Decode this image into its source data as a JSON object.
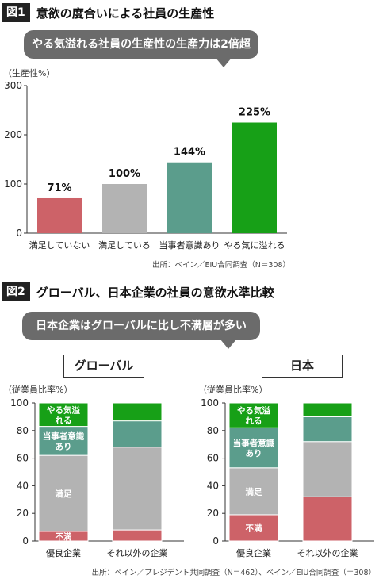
{
  "fig1": {
    "label": "図1",
    "title": "意欲の度合いによる社員の生産性",
    "callout": "やる気溢れる社員の生産性の生産力は2倍超",
    "unit": "（生産性%）",
    "source": "出所：ベイン／EIU合同調査（N＝308）"
  },
  "fig2": {
    "label": "図2",
    "title": "グローバル、日本企業の社員の意欲水準比較",
    "callout": "日本企業はグローバルに比し不満層が多い",
    "source": "出所：ベイン／プレジデント共同調査（N＝462）、ベイン／EIU合同調査（＝308）",
    "panels": [
      {
        "title": "グローバル",
        "unit": "（従業員比率%）"
      },
      {
        "title": "日本",
        "unit": "（従業員比率%）"
      }
    ]
  },
  "colors": {
    "red": "#cd6268",
    "gray": "#b3b3b3",
    "teal": "#5b9d8c",
    "green": "#17a017"
  },
  "chart_data": [
    {
      "type": "bar",
      "categories": [
        "満足していない",
        "満足している",
        "当事者意識あり",
        "やる気に溢れる"
      ],
      "values": [
        71,
        100,
        144,
        225
      ],
      "data_labels": [
        "71%",
        "100%",
        "144%",
        "225%"
      ],
      "colors": [
        "#cd6268",
        "#b3b3b3",
        "#5b9d8c",
        "#17a017"
      ],
      "title": "",
      "ylabel": "（生産性%）",
      "ylim": [
        0,
        300
      ],
      "yticks": [
        0,
        100,
        200,
        300
      ]
    },
    {
      "type": "stacked_bar",
      "panel": "グローバル",
      "categories": [
        "優良企業",
        "それ以外の企業"
      ],
      "ylabel": "（従業員比率%）",
      "ylim": [
        0,
        100
      ],
      "yticks": [
        0,
        20,
        40,
        60,
        80,
        100
      ],
      "series": [
        {
          "name": "不満",
          "values": [
            7,
            8
          ],
          "color": "#cd6268"
        },
        {
          "name": "満足",
          "values": [
            55,
            60
          ],
          "color": "#b3b3b3"
        },
        {
          "name": "当事者意識あり",
          "values": [
            21,
            19
          ],
          "color": "#5b9d8c"
        },
        {
          "name": "やる気溢れる",
          "values": [
            17,
            13
          ],
          "color": "#17a017"
        }
      ],
      "segment_labels": [
        [
          "不満",
          "満足",
          "当事者意識あり",
          "やる気溢れる"
        ],
        [
          "",
          "",
          "",
          ""
        ]
      ]
    },
    {
      "type": "stacked_bar",
      "panel": "日本",
      "categories": [
        "優良企業",
        "それ以外の企業"
      ],
      "ylabel": "（従業員比率%）",
      "ylim": [
        0,
        100
      ],
      "yticks": [
        0,
        20,
        40,
        60,
        80,
        100
      ],
      "series": [
        {
          "name": "不満",
          "values": [
            19,
            32
          ],
          "color": "#cd6268"
        },
        {
          "name": "満足",
          "values": [
            34,
            40
          ],
          "color": "#b3b3b3"
        },
        {
          "name": "当事者意識あり",
          "values": [
            29,
            18
          ],
          "color": "#5b9d8c"
        },
        {
          "name": "やる気溢れる",
          "values": [
            18,
            10
          ],
          "color": "#17a017"
        }
      ],
      "segment_labels": [
        [
          "不満",
          "満足",
          "当事者意識あり",
          "やる気溢れる"
        ],
        [
          "",
          "",
          "",
          ""
        ]
      ]
    }
  ]
}
